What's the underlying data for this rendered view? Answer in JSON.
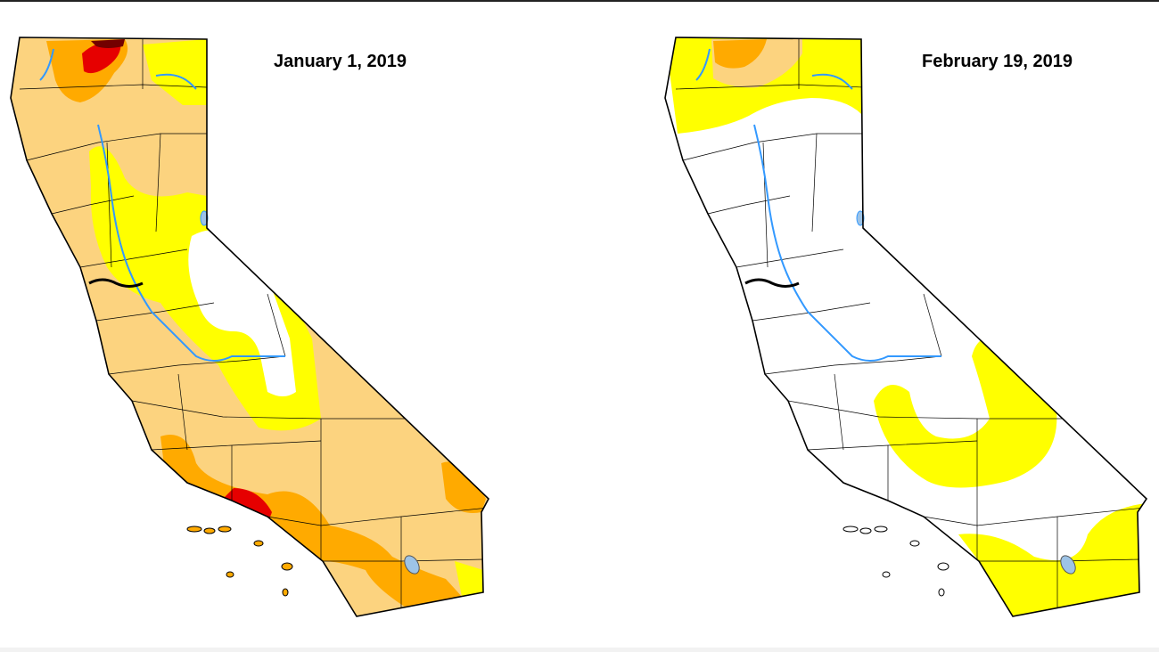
{
  "maps": [
    {
      "date": "January 1, 2019"
    },
    {
      "date": "February 19, 2019"
    }
  ],
  "colors": {
    "none": "#ffffff",
    "abnormally_dry": "#ffff00",
    "moderate_drought": "#fcd37f",
    "severe_drought": "#ffaa00",
    "extreme_drought": "#e60000",
    "exceptional_drought": "#730000",
    "water": "#9dc3e6",
    "river": "#3399ff",
    "border": "#000000"
  }
}
